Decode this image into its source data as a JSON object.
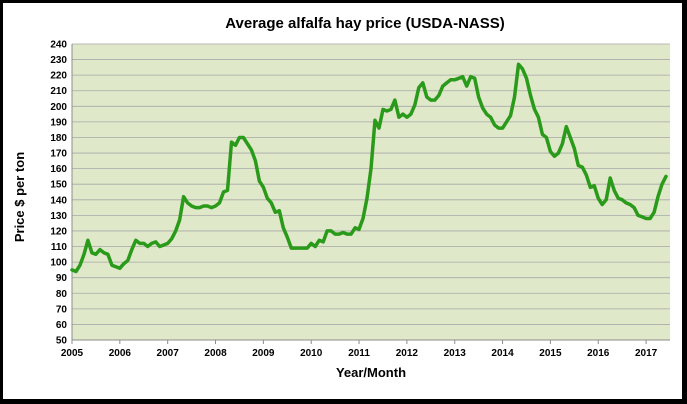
{
  "chart_data": {
    "type": "line",
    "title": "Average alfalfa hay price (USDA-NASS)",
    "xlabel": "Year/Month",
    "ylabel": "Price $ per ton",
    "ylim": [
      50,
      240
    ],
    "yticks": [
      50,
      60,
      70,
      80,
      90,
      100,
      110,
      120,
      130,
      140,
      150,
      160,
      170,
      180,
      190,
      200,
      210,
      220,
      230,
      240
    ],
    "xlim": [
      2005,
      2017.5
    ],
    "xticks": [
      "2005",
      "2006",
      "2007",
      "2008",
      "2009",
      "2010",
      "2011",
      "2012",
      "2013",
      "2014",
      "2015",
      "2016",
      "2017"
    ],
    "grid": true,
    "legend": "none",
    "colors": {
      "plot_background": "#dfe8c8",
      "gridline": "#a9a9a9",
      "line": "#2a9a1a",
      "frame": "#000000",
      "page_background": "#ffffff"
    },
    "series": [
      {
        "x": [
          2005.0,
          2005.083,
          2005.167,
          2005.25,
          2005.333,
          2005.417,
          2005.5,
          2005.583,
          2005.667,
          2005.75,
          2005.833,
          2005.917,
          2006.0,
          2006.083,
          2006.167,
          2006.25,
          2006.333,
          2006.417,
          2006.5,
          2006.583,
          2006.667,
          2006.75,
          2006.833,
          2006.917,
          2007.0,
          2007.083,
          2007.167,
          2007.25,
          2007.333,
          2007.417,
          2007.5,
          2007.583,
          2007.667,
          2007.75,
          2007.833,
          2007.917,
          2008.0,
          2008.083,
          2008.167,
          2008.25,
          2008.333,
          2008.417,
          2008.5,
          2008.583,
          2008.667,
          2008.75,
          2008.833,
          2008.917,
          2009.0,
          2009.083,
          2009.167,
          2009.25,
          2009.333,
          2009.417,
          2009.5,
          2009.583,
          2009.667,
          2009.75,
          2009.833,
          2009.917,
          2010.0,
          2010.083,
          2010.167,
          2010.25,
          2010.333,
          2010.417,
          2010.5,
          2010.583,
          2010.667,
          2010.75,
          2010.833,
          2010.917,
          2011.0,
          2011.083,
          2011.167,
          2011.25,
          2011.333,
          2011.417,
          2011.5,
          2011.583,
          2011.667,
          2011.75,
          2011.833,
          2011.917,
          2012.0,
          2012.083,
          2012.167,
          2012.25,
          2012.333,
          2012.417,
          2012.5,
          2012.583,
          2012.667,
          2012.75,
          2012.833,
          2012.917,
          2013.0,
          2013.083,
          2013.167,
          2013.25,
          2013.333,
          2013.417,
          2013.5,
          2013.583,
          2013.667,
          2013.75,
          2013.833,
          2013.917,
          2014.0,
          2014.083,
          2014.167,
          2014.25,
          2014.333,
          2014.417,
          2014.5,
          2014.583,
          2014.667,
          2014.75,
          2014.833,
          2014.917,
          2015.0,
          2015.083,
          2015.167,
          2015.25,
          2015.333,
          2015.417,
          2015.5,
          2015.583,
          2015.667,
          2015.75,
          2015.833,
          2015.917,
          2016.0,
          2016.083,
          2016.167,
          2016.25,
          2016.333,
          2016.417,
          2016.5,
          2016.583,
          2016.667,
          2016.75,
          2016.833,
          2016.917,
          2017.0,
          2017.083,
          2017.167,
          2017.25,
          2017.333,
          2017.417
        ],
        "values": [
          95,
          94,
          98,
          105,
          114,
          106,
          105,
          108,
          106,
          105,
          98,
          97,
          96,
          99,
          101,
          108,
          114,
          112,
          112,
          110,
          112,
          113,
          110,
          111,
          112,
          115,
          120,
          127,
          142,
          138,
          136,
          135,
          135,
          136,
          136,
          135,
          136,
          138,
          145,
          146,
          177,
          175,
          180,
          180,
          176,
          172,
          165,
          152,
          148,
          141,
          138,
          132,
          133,
          122,
          116,
          109,
          109,
          109,
          109,
          109,
          112,
          110,
          114,
          113,
          120,
          120,
          118,
          118,
          119,
          118,
          118,
          122,
          121,
          128,
          141,
          160,
          191,
          186,
          198,
          197,
          198,
          204,
          193,
          195,
          193,
          195,
          201,
          212,
          215,
          206,
          204,
          204,
          207,
          213,
          215,
          217,
          217,
          218,
          219,
          213,
          219,
          218,
          206,
          199,
          195,
          193,
          188,
          186,
          186,
          190,
          194,
          206,
          227,
          224,
          218,
          207,
          198,
          193,
          182,
          180,
          171,
          168,
          170,
          176,
          187,
          180,
          173,
          162,
          161,
          156,
          148,
          149,
          141,
          137,
          140,
          154,
          146,
          141,
          140,
          138,
          137,
          135,
          130,
          129,
          128,
          128,
          132,
          142,
          150,
          155
        ]
      }
    ]
  }
}
